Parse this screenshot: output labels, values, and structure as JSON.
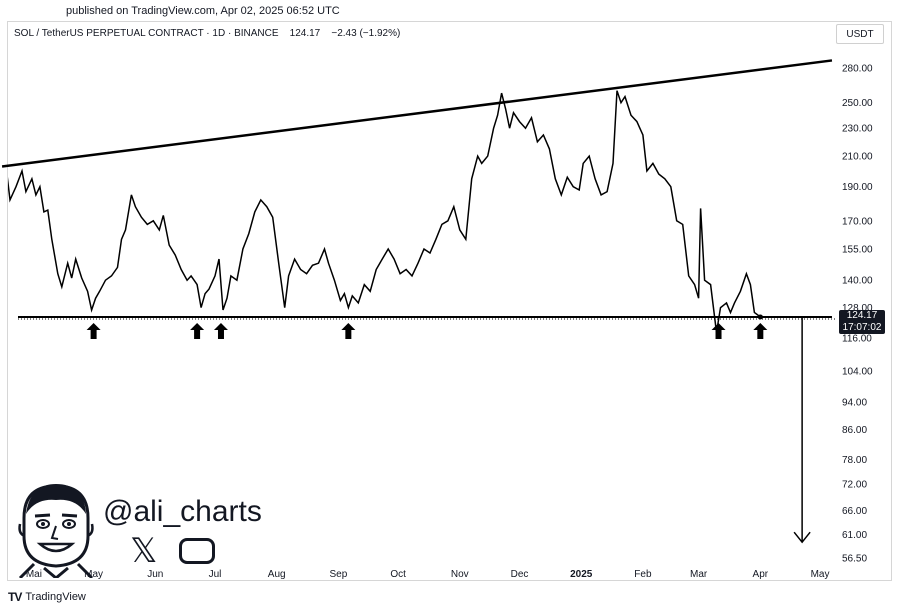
{
  "published": "published on TradingView.com, Apr 02, 2025 06:52 UTC",
  "symbol": {
    "name": "SOL / TetherUS PERPETUAL CONTRACT",
    "interval": "1D",
    "exchange": "BINANCE",
    "price": "124.17",
    "change": "−2.43 (−1.92%)"
  },
  "currency": "USDT",
  "price_tag": {
    "price": "124.17",
    "countdown": "17:07:02"
  },
  "watermark": {
    "handle": "@ali_charts",
    "icons": [
      "x-icon",
      "youtube-icon"
    ]
  },
  "footer": {
    "brand": "TradingView",
    "logo": "TV"
  },
  "colors": {
    "line": "#000000",
    "background": "#ffffff",
    "tag": "#131722"
  },
  "chart_data": {
    "type": "line",
    "scale": "log",
    "ylim": [
      56.5,
      290
    ],
    "y_ticks": [
      "280.00",
      "250.00",
      "230.00",
      "210.00",
      "190.00",
      "170.00",
      "155.00",
      "140.00",
      "128.00",
      "116.00",
      "104.00",
      "94.00",
      "86.00",
      "78.00",
      "72.00",
      "66.00",
      "61.00",
      "56.50"
    ],
    "x_ticks": [
      {
        "label": "Mai",
        "date": "2024-04-01"
      },
      {
        "label": "May",
        "date": "2024-05-01"
      },
      {
        "label": "Jun",
        "date": "2024-06-01"
      },
      {
        "label": "Jul",
        "date": "2024-07-01"
      },
      {
        "label": "Aug",
        "date": "2024-08-01"
      },
      {
        "label": "Sep",
        "date": "2024-09-01"
      },
      {
        "label": "Oct",
        "date": "2024-10-01"
      },
      {
        "label": "Nov",
        "date": "2024-11-01"
      },
      {
        "label": "Dec",
        "date": "2024-12-01"
      },
      {
        "label": "2025",
        "date": "2025-01-01",
        "bold": true
      },
      {
        "label": "Feb",
        "date": "2025-02-01"
      },
      {
        "label": "Mar",
        "date": "2025-03-01"
      },
      {
        "label": "Apr",
        "date": "2025-04-01"
      },
      {
        "label": "May",
        "date": "2025-05-01"
      }
    ],
    "series": [
      {
        "points": [
          [
            "2024-03-01",
            112
          ],
          [
            "2024-03-03",
            124
          ],
          [
            "2024-03-06",
            130
          ],
          [
            "2024-03-08",
            140
          ],
          [
            "2024-03-11",
            165
          ],
          [
            "2024-03-14",
            175
          ],
          [
            "2024-03-16",
            195
          ],
          [
            "2024-03-18",
            203
          ],
          [
            "2024-03-20",
            182
          ],
          [
            "2024-03-23",
            190
          ],
          [
            "2024-03-26",
            200
          ],
          [
            "2024-03-28",
            187
          ],
          [
            "2024-03-31",
            195
          ],
          [
            "2024-04-02",
            185
          ],
          [
            "2024-04-04",
            190
          ],
          [
            "2024-04-06",
            175
          ],
          [
            "2024-04-08",
            176
          ],
          [
            "2024-04-10",
            160
          ],
          [
            "2024-04-13",
            143
          ],
          [
            "2024-04-15",
            137
          ],
          [
            "2024-04-18",
            148
          ],
          [
            "2024-04-20",
            141
          ],
          [
            "2024-04-22",
            150
          ],
          [
            "2024-04-25",
            141
          ],
          [
            "2024-04-28",
            135
          ],
          [
            "2024-04-30",
            127
          ],
          [
            "2024-05-02",
            132
          ],
          [
            "2024-05-04",
            135
          ],
          [
            "2024-05-07",
            140
          ],
          [
            "2024-05-10",
            142
          ],
          [
            "2024-05-13",
            146
          ],
          [
            "2024-05-15",
            160
          ],
          [
            "2024-05-17",
            165
          ],
          [
            "2024-05-20",
            185
          ],
          [
            "2024-05-22",
            178
          ],
          [
            "2024-05-25",
            172
          ],
          [
            "2024-05-28",
            168
          ],
          [
            "2024-05-31",
            170
          ],
          [
            "2024-06-03",
            165
          ],
          [
            "2024-06-05",
            173
          ],
          [
            "2024-06-08",
            157
          ],
          [
            "2024-06-11",
            152
          ],
          [
            "2024-06-14",
            145
          ],
          [
            "2024-06-17",
            140
          ],
          [
            "2024-06-19",
            142
          ],
          [
            "2024-06-22",
            138
          ],
          [
            "2024-06-24",
            128
          ],
          [
            "2024-06-26",
            134
          ],
          [
            "2024-06-28",
            136
          ],
          [
            "2024-07-01",
            142
          ],
          [
            "2024-07-03",
            150
          ],
          [
            "2024-07-05",
            127
          ],
          [
            "2024-07-07",
            132
          ],
          [
            "2024-07-09",
            142
          ],
          [
            "2024-07-12",
            140
          ],
          [
            "2024-07-15",
            155
          ],
          [
            "2024-07-18",
            163
          ],
          [
            "2024-07-21",
            175
          ],
          [
            "2024-07-24",
            182
          ],
          [
            "2024-07-27",
            178
          ],
          [
            "2024-07-30",
            172
          ],
          [
            "2024-08-02",
            148
          ],
          [
            "2024-08-05",
            128
          ],
          [
            "2024-08-07",
            142
          ],
          [
            "2024-08-10",
            150
          ],
          [
            "2024-08-13",
            145
          ],
          [
            "2024-08-16",
            143
          ],
          [
            "2024-08-19",
            147
          ],
          [
            "2024-08-22",
            148
          ],
          [
            "2024-08-25",
            155
          ],
          [
            "2024-08-27",
            148
          ],
          [
            "2024-08-30",
            140
          ],
          [
            "2024-09-02",
            131
          ],
          [
            "2024-09-04",
            134
          ],
          [
            "2024-09-06",
            128
          ],
          [
            "2024-09-08",
            133
          ],
          [
            "2024-09-11",
            130
          ],
          [
            "2024-09-14",
            138
          ],
          [
            "2024-09-17",
            135
          ],
          [
            "2024-09-20",
            145
          ],
          [
            "2024-09-23",
            150
          ],
          [
            "2024-09-26",
            155
          ],
          [
            "2024-09-29",
            150
          ],
          [
            "2024-10-02",
            143
          ],
          [
            "2024-10-05",
            145
          ],
          [
            "2024-10-08",
            142
          ],
          [
            "2024-10-11",
            148
          ],
          [
            "2024-10-14",
            155
          ],
          [
            "2024-10-17",
            153
          ],
          [
            "2024-10-20",
            160
          ],
          [
            "2024-10-23",
            168
          ],
          [
            "2024-10-26",
            170
          ],
          [
            "2024-10-29",
            178
          ],
          [
            "2024-11-01",
            165
          ],
          [
            "2024-11-04",
            160
          ],
          [
            "2024-11-07",
            195
          ],
          [
            "2024-11-10",
            210
          ],
          [
            "2024-11-12",
            205
          ],
          [
            "2024-11-15",
            210
          ],
          [
            "2024-11-18",
            230
          ],
          [
            "2024-11-20",
            240
          ],
          [
            "2024-11-22",
            258
          ],
          [
            "2024-11-24",
            245
          ],
          [
            "2024-11-26",
            230
          ],
          [
            "2024-11-28",
            242
          ],
          [
            "2024-12-01",
            235
          ],
          [
            "2024-12-04",
            230
          ],
          [
            "2024-12-07",
            238
          ],
          [
            "2024-12-10",
            220
          ],
          [
            "2024-12-13",
            225
          ],
          [
            "2024-12-16",
            215
          ],
          [
            "2024-12-19",
            195
          ],
          [
            "2024-12-22",
            185
          ],
          [
            "2024-12-25",
            196
          ],
          [
            "2024-12-28",
            190
          ],
          [
            "2024-12-31",
            188
          ],
          [
            "2025-01-02",
            205
          ],
          [
            "2025-01-05",
            210
          ],
          [
            "2025-01-08",
            195
          ],
          [
            "2025-01-11",
            185
          ],
          [
            "2025-01-14",
            187
          ],
          [
            "2025-01-17",
            205
          ],
          [
            "2025-01-19",
            260
          ],
          [
            "2025-01-21",
            250
          ],
          [
            "2025-01-23",
            255
          ],
          [
            "2025-01-26",
            240
          ],
          [
            "2025-01-29",
            235
          ],
          [
            "2025-02-01",
            225
          ],
          [
            "2025-02-03",
            200
          ],
          [
            "2025-02-06",
            205
          ],
          [
            "2025-02-09",
            198
          ],
          [
            "2025-02-12",
            195
          ],
          [
            "2025-02-15",
            190
          ],
          [
            "2025-02-18",
            170
          ],
          [
            "2025-02-21",
            168
          ],
          [
            "2025-02-24",
            142
          ],
          [
            "2025-02-27",
            138
          ],
          [
            "2025-03-01",
            132
          ],
          [
            "2025-03-02",
            177
          ],
          [
            "2025-03-04",
            140
          ],
          [
            "2025-03-07",
            138
          ],
          [
            "2025-03-10",
            118
          ],
          [
            "2025-03-12",
            128
          ],
          [
            "2025-03-15",
            130
          ],
          [
            "2025-03-17",
            126
          ],
          [
            "2025-03-19",
            130
          ],
          [
            "2025-03-22",
            135
          ],
          [
            "2025-03-25",
            143
          ],
          [
            "2025-03-27",
            138
          ],
          [
            "2025-03-29",
            126
          ],
          [
            "2025-04-01",
            124.17
          ]
        ]
      }
    ],
    "trendlines": [
      {
        "name": "resistance",
        "from": [
          "2024-03-16",
          203
        ],
        "to": [
          "2025-05-07",
          287
        ]
      },
      {
        "name": "support",
        "from": [
          "2024-03-01",
          124.17
        ],
        "to": [
          "2025-05-07",
          124.17
        ]
      }
    ],
    "arrows_up": [
      "2024-05-01",
      "2024-06-22",
      "2024-07-04",
      "2024-09-06",
      "2025-03-11",
      "2025-04-01"
    ],
    "target_arrow": {
      "date": "2025-04-22",
      "from": 124.17,
      "to": 59.5
    }
  }
}
